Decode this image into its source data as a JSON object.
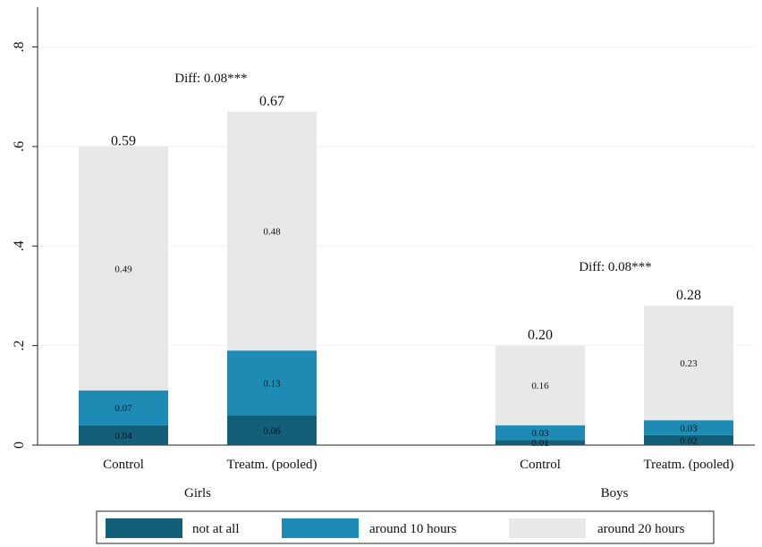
{
  "chart_data": {
    "type": "bar",
    "stacked": true,
    "y_ticks": [
      {
        "value": 0,
        "label": "0"
      },
      {
        "value": 0.2,
        "label": ".2"
      },
      {
        "value": 0.4,
        "label": ".4"
      },
      {
        "value": 0.6,
        "label": ".6"
      },
      {
        "value": 0.8,
        "label": ".8"
      }
    ],
    "ylim": [
      0,
      0.88
    ],
    "grid": true,
    "groups": [
      {
        "label": "Girls",
        "diff_label": "Diff: 0.08***"
      },
      {
        "label": "Boys",
        "diff_label": "Diff: 0.08***"
      }
    ],
    "bars": [
      {
        "group": 0,
        "label": "Control",
        "total": 0.59,
        "total_label": "0.59",
        "segments": [
          0.04,
          0.07,
          0.49
        ],
        "segment_labels": [
          "0.04",
          "0.07",
          "0.49"
        ]
      },
      {
        "group": 0,
        "label": "Treatm. (pooled)",
        "total": 0.67,
        "total_label": "0.67",
        "segments": [
          0.06,
          0.13,
          0.48
        ],
        "segment_labels": [
          "0.06",
          "0.13",
          "0.48"
        ]
      },
      {
        "group": 1,
        "label": "Control",
        "total": 0.2,
        "total_label": "0.20",
        "segments": [
          0.01,
          0.03,
          0.16
        ],
        "segment_labels": [
          "0.01",
          "0.03",
          "0.16"
        ]
      },
      {
        "group": 1,
        "label": "Treatm. (pooled)",
        "total": 0.28,
        "total_label": "0.28",
        "segments": [
          0.02,
          0.03,
          0.23
        ],
        "segment_labels": [
          "0.02",
          "0.03",
          "0.23"
        ]
      }
    ],
    "series": [
      {
        "name": "not at all",
        "color": "#135f7a"
      },
      {
        "name": "around 10 hours",
        "color": "#1d8bb3"
      },
      {
        "name": "around 20 hours",
        "color": "#e8e8e8"
      }
    ],
    "legend_position": "bottom"
  }
}
